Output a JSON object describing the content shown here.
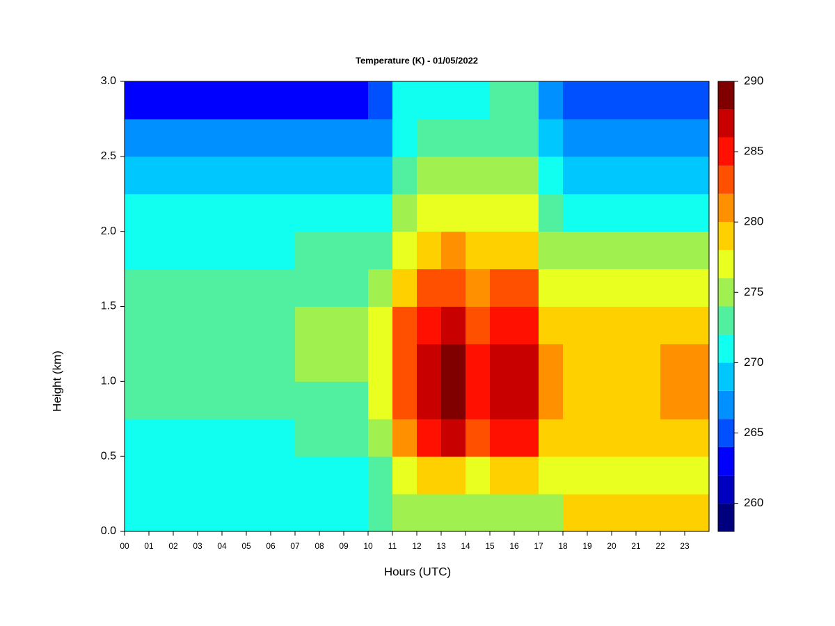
{
  "chart_data": {
    "type": "heatmap",
    "title": "Temperature (K) - 01/05/2022",
    "x_label": "Hours (UTC)",
    "y_label": "Height (km)",
    "x": [
      0.5,
      1.5,
      2.5,
      3.5,
      4.5,
      5.5,
      6.5,
      7.5,
      8.5,
      9.5,
      10.5,
      11.5,
      12.5,
      13.5,
      14.5,
      15.5,
      16.5,
      17.5,
      18.5,
      19.5,
      20.5,
      21.5,
      22.5,
      23.5
    ],
    "y": [
      0.125,
      0.375,
      0.625,
      0.875,
      1.125,
      1.375,
      1.625,
      1.875,
      2.125,
      2.375,
      2.625,
      2.875
    ],
    "values": [
      [
        270,
        270.5,
        271.5,
        272.5,
        273,
        273,
        272.5,
        271.5,
        270,
        268,
        266,
        263.5
      ],
      [
        270,
        270.5,
        271.5,
        272.5,
        273,
        273,
        272.5,
        271.5,
        270,
        268,
        266,
        263.5
      ],
      [
        270,
        270.5,
        271.5,
        272.5,
        273,
        273,
        272.5,
        271.5,
        270,
        268,
        266,
        263.5
      ],
      [
        270,
        270.5,
        271.5,
        272.5,
        273,
        273,
        272.5,
        271.5,
        270,
        268,
        266,
        263.5
      ],
      [
        270,
        270.5,
        271.5,
        272.5,
        273,
        273,
        272.5,
        271.5,
        270,
        268,
        266,
        263.5
      ],
      [
        270,
        270.5,
        271.5,
        272.5,
        273,
        273,
        272.5,
        271.5,
        270,
        268,
        266,
        263.5
      ],
      [
        270,
        270.5,
        271.5,
        272.5,
        273,
        273,
        272.5,
        271.5,
        270,
        268,
        266,
        263.5
      ],
      [
        270.5,
        271,
        272.5,
        273.5,
        274,
        274,
        273,
        272,
        270.5,
        268.5,
        266,
        263.5
      ],
      [
        270.5,
        271,
        272.5,
        273.5,
        274,
        274,
        273,
        272,
        270.5,
        268.5,
        266,
        263.5
      ],
      [
        270.5,
        271,
        272.5,
        273.5,
        274,
        274,
        273,
        272,
        270.5,
        268.5,
        266,
        263.5
      ],
      [
        272,
        273,
        275,
        277,
        277,
        276,
        275,
        273,
        271,
        269,
        267,
        264
      ],
      [
        275,
        277,
        281,
        283,
        283,
        282,
        279,
        277,
        275,
        273,
        271,
        270
      ],
      [
        275,
        278,
        285,
        287,
        287,
        285,
        282,
        279,
        276,
        274,
        272,
        271
      ],
      [
        275,
        278,
        286,
        288,
        288,
        286,
        283,
        280,
        277,
        275,
        273,
        271
      ],
      [
        275,
        277,
        282,
        284,
        284,
        283,
        280,
        278,
        276,
        274,
        272,
        271
      ],
      [
        275,
        278,
        285,
        286,
        286,
        285,
        282,
        279,
        277,
        275,
        273,
        272
      ],
      [
        275,
        278,
        285,
        287,
        287,
        285,
        282,
        279,
        277,
        275,
        273,
        272
      ],
      [
        274,
        277,
        279,
        280,
        280,
        279,
        277,
        275,
        273,
        271,
        269,
        267
      ],
      [
        278,
        277,
        279,
        279.5,
        279.5,
        279,
        276,
        274,
        271,
        269,
        267,
        265
      ],
      [
        278,
        277,
        279,
        279.5,
        279.5,
        279,
        276,
        274,
        271,
        269,
        267,
        265
      ],
      [
        278,
        277,
        279,
        279.5,
        279.5,
        279,
        276,
        274,
        271,
        269,
        267,
        265
      ],
      [
        278,
        277,
        279,
        279.5,
        279.5,
        279,
        276,
        274,
        271,
        269,
        267,
        265
      ],
      [
        278.5,
        277.5,
        279.5,
        280,
        280,
        279,
        276,
        274,
        271,
        269,
        267,
        265
      ],
      [
        278.5,
        277.5,
        279.5,
        280,
        280,
        279,
        276,
        274,
        271,
        269,
        267,
        265
      ]
    ],
    "xlim": [
      0,
      24
    ],
    "xticks": [
      {
        "value": 0,
        "label": "00"
      },
      {
        "value": 1,
        "label": "01"
      },
      {
        "value": 2,
        "label": "02"
      },
      {
        "value": 3,
        "label": "03"
      },
      {
        "value": 4,
        "label": "04"
      },
      {
        "value": 5,
        "label": "05"
      },
      {
        "value": 6,
        "label": "06"
      },
      {
        "value": 7,
        "label": "07"
      },
      {
        "value": 8,
        "label": "08"
      },
      {
        "value": 9,
        "label": "09"
      },
      10,
      11,
      12,
      13,
      14,
      15,
      16,
      17,
      18,
      19,
      20,
      21,
      22,
      23
    ],
    "ylim": [
      0,
      3
    ],
    "yticks": [
      {
        "value": 0,
        "label": "0.0"
      },
      0.5,
      {
        "value": 1,
        "label": "1.0"
      },
      1.5,
      {
        "value": 2,
        "label": "2.0"
      },
      2.5,
      {
        "value": 3,
        "label": "3.0"
      }
    ],
    "levels": [
      258,
      260,
      262,
      264,
      266,
      268,
      270,
      272,
      274,
      276,
      278,
      280,
      282,
      284,
      286,
      288,
      290
    ],
    "colors": [
      "#00007f",
      "#0000c0",
      "#0000ff",
      "#0050ff",
      "#0090ff",
      "#00c8ff",
      "#10fff0",
      "#50f0a0",
      "#a0f050",
      "#e8ff20",
      "#ffd000",
      "#ff9000",
      "#ff5000",
      "#ff1000",
      "#c80000",
      "#800000"
    ],
    "colorbar_ticks": [
      260,
      265,
      270,
      275,
      280,
      285,
      290
    ]
  }
}
